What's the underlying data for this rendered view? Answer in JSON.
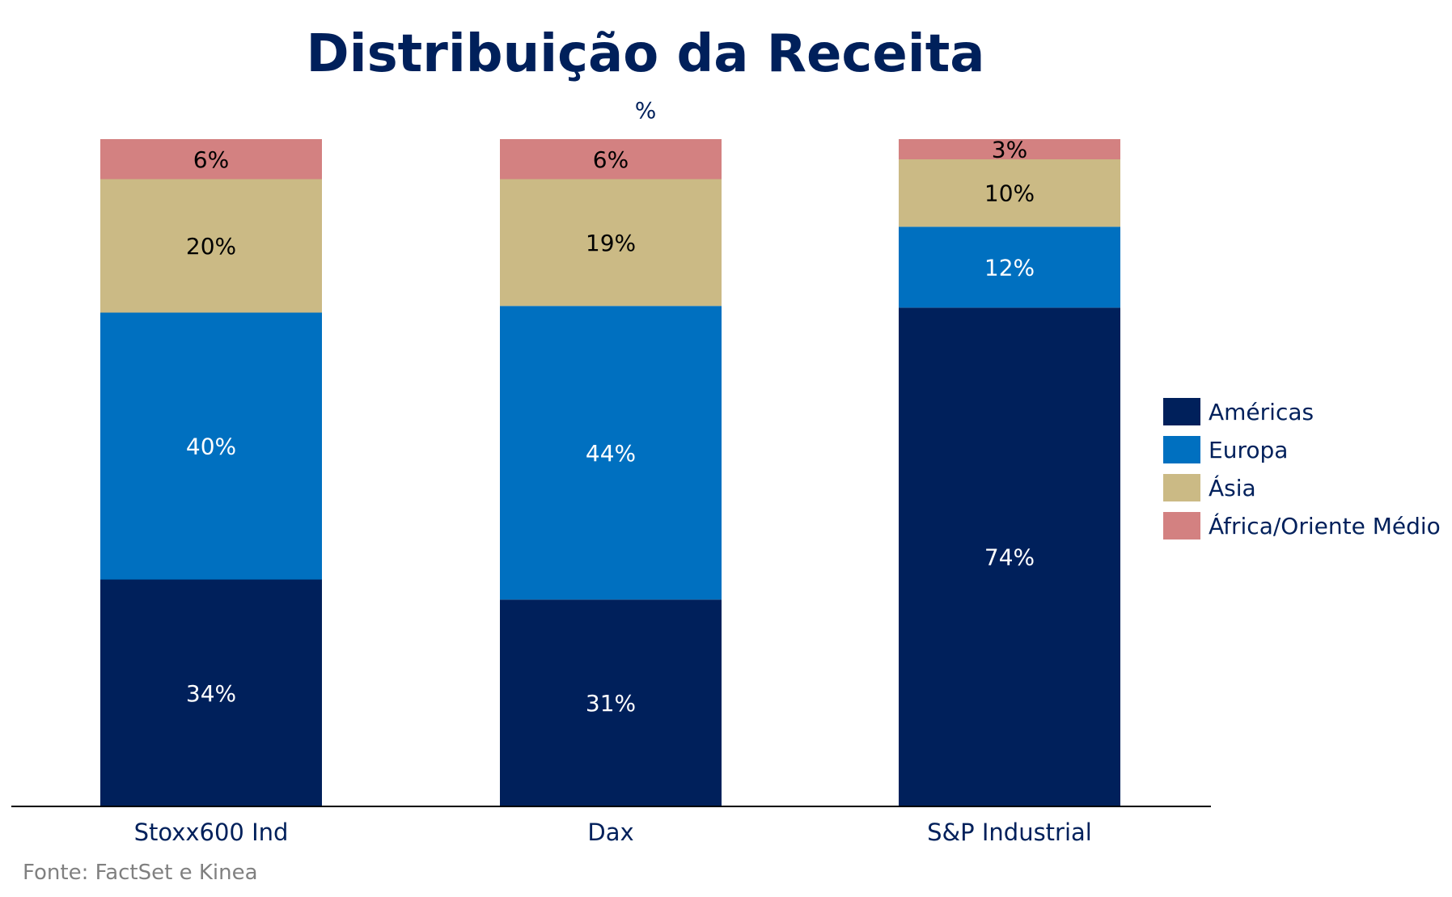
{
  "chart_data": {
    "type": "bar",
    "stacked": true,
    "title": "Distribuição da Receita",
    "subtitle": "%",
    "categories": [
      "Stoxx600 Ind",
      "Dax",
      "S&P Industrial"
    ],
    "series": [
      {
        "name": "Américas",
        "values": [
          34,
          31,
          74
        ],
        "labels": [
          "34%",
          "31%",
          "74%"
        ],
        "color": "#00205b",
        "label_color": "#ffffff"
      },
      {
        "name": "Europa",
        "values": [
          40,
          44,
          12
        ],
        "labels": [
          "40%",
          "44%",
          "12%"
        ],
        "color": "#0070c0",
        "label_color": "#ffffff"
      },
      {
        "name": "Ásia",
        "values": [
          20,
          19,
          10
        ],
        "labels": [
          "20%",
          "19%",
          "10%"
        ],
        "color": "#cbba85",
        "label_color": "#000000"
      },
      {
        "name": "África/Oriente Médio",
        "values": [
          6,
          6,
          3
        ],
        "labels": [
          "6%",
          "6%",
          "3%"
        ],
        "color": "#d38181",
        "label_color": "#000000"
      }
    ],
    "legend_position": "right",
    "grid": false,
    "source": "Fonte: FactSet e Kinea"
  },
  "colors": {
    "title": "#00205b",
    "axis_text": "#00205b",
    "source_text": "#808080",
    "axis_line": "#000000"
  }
}
